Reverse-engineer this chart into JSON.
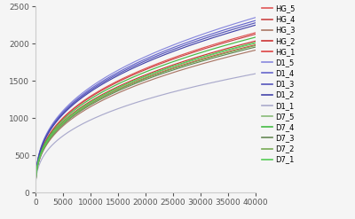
{
  "series": [
    {
      "label": "HG_5",
      "color": "#e05555",
      "coef": 32.0,
      "exp": 0.365,
      "final": 2110
    },
    {
      "label": "HG_4",
      "color": "#cc4444",
      "coef": 31.0,
      "exp": 0.365,
      "final": 2090
    },
    {
      "label": "HG_3",
      "color": "#aa7766",
      "coef": 27.5,
      "exp": 0.365,
      "final": 1880
    },
    {
      "label": "HG_2",
      "color": "#cc3333",
      "coef": 29.5,
      "exp": 0.365,
      "final": 2000
    },
    {
      "label": "HG_1",
      "color": "#dd4444",
      "coef": 28.5,
      "exp": 0.365,
      "final": 1950
    },
    {
      "label": "D1_5",
      "color": "#8888dd",
      "coef": 35.5,
      "exp": 0.365,
      "final": 2310
    },
    {
      "label": "D1_4",
      "color": "#6666cc",
      "coef": 34.5,
      "exp": 0.365,
      "final": 2270
    },
    {
      "label": "D1_3",
      "color": "#5555bb",
      "coef": 33.5,
      "exp": 0.365,
      "final": 2240
    },
    {
      "label": "D1_2",
      "color": "#4444aa",
      "coef": 32.5,
      "exp": 0.365,
      "final": 2210
    },
    {
      "label": "D1_1",
      "color": "#aaaacc",
      "coef": 20.0,
      "exp": 0.355,
      "final": 1570
    },
    {
      "label": "D7_5",
      "color": "#88bb77",
      "coef": 29.0,
      "exp": 0.365,
      "final": 1970
    },
    {
      "label": "D7_4",
      "color": "#44bb44",
      "coef": 30.5,
      "exp": 0.365,
      "final": 2050
    },
    {
      "label": "D7_3",
      "color": "#668855",
      "coef": 28.0,
      "exp": 0.365,
      "final": 1920
    },
    {
      "label": "D7_2",
      "color": "#77aa55",
      "coef": 28.5,
      "exp": 0.365,
      "final": 1940
    },
    {
      "label": "D7_1",
      "color": "#55cc55",
      "coef": 29.5,
      "exp": 0.365,
      "final": 1980
    }
  ],
  "xlim": [
    0,
    40000
  ],
  "ylim": [
    0,
    2500
  ],
  "xticks": [
    0,
    5000,
    10000,
    15000,
    20000,
    25000,
    30000,
    35000,
    40000
  ],
  "yticks": [
    0,
    500,
    1000,
    1500,
    2000,
    2500
  ],
  "figsize": [
    4.0,
    2.47
  ],
  "dpi": 100,
  "bg_color": "#f5f5f5"
}
